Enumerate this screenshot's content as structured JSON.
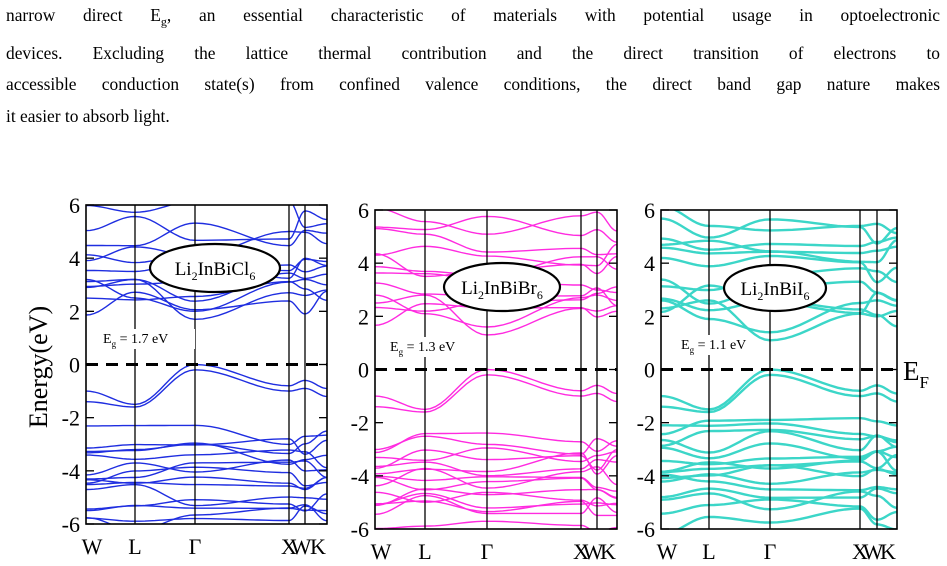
{
  "paragraph": {
    "line1_a": "narrow direct E",
    "line1_sub": "g",
    "line1_b": ", an essential characteristic of materials with potential usage in optoelectronic",
    "line2": "devices. Excluding the lattice thermal contribution and the direct transition of electrons to",
    "line3": "accessible conduction state(s) from confined valence conditions, the direct band gap nature makes",
    "line4": "it easier to absorb light."
  },
  "figure": {
    "ylabel": "Energy(eV)",
    "fermi_label": "E",
    "fermi_sub": "F",
    "yticks": [
      "6",
      "4",
      "2",
      "0",
      "-2",
      "-4",
      "-6"
    ],
    "kpoints": [
      "W",
      "L",
      "Γ",
      "X",
      "W",
      "K"
    ],
    "colors": {
      "Cl": "#1f2ee0",
      "Br": "#ff2be0",
      "I": "#3cd6c8"
    },
    "panels": [
      {
        "id": "Cl",
        "formula": [
          "Li",
          "2",
          "InBiCl",
          "6"
        ],
        "gap_prefix": "E",
        "gap_sub": "g",
        "gap_value": " = 1.7 eV"
      },
      {
        "id": "Br",
        "formula": [
          "Li",
          "2",
          "InBiBr",
          "6"
        ],
        "gap_prefix": "E",
        "gap_sub": "g",
        "gap_value": " = 1.3 eV"
      },
      {
        "id": "I",
        "formula": [
          "Li",
          "2",
          "InBiI",
          "6"
        ],
        "gap_prefix": "E",
        "gap_sub": "g",
        "gap_value": " = 1.1 eV"
      }
    ]
  },
  "chart_data": [
    {
      "type": "line",
      "title": "Li2InBiCl6",
      "ylabel": "Energy(eV)",
      "ylim": [
        -6,
        6
      ],
      "xticks": [
        "W",
        "L",
        "Γ",
        "X",
        "W",
        "K"
      ],
      "band_gap_eV": 1.7,
      "fermi_level": 0
    },
    {
      "type": "line",
      "title": "Li2InBiBr6",
      "ylim": [
        -6,
        6
      ],
      "xticks": [
        "W",
        "L",
        "Γ",
        "X",
        "W",
        "K"
      ],
      "band_gap_eV": 1.3,
      "fermi_level": 0
    },
    {
      "type": "line",
      "title": "Li2InBiI6",
      "ylim": [
        -6,
        6
      ],
      "xticks": [
        "W",
        "L",
        "Γ",
        "X",
        "W",
        "K"
      ],
      "band_gap_eV": 1.1,
      "fermi_level": 0
    }
  ]
}
